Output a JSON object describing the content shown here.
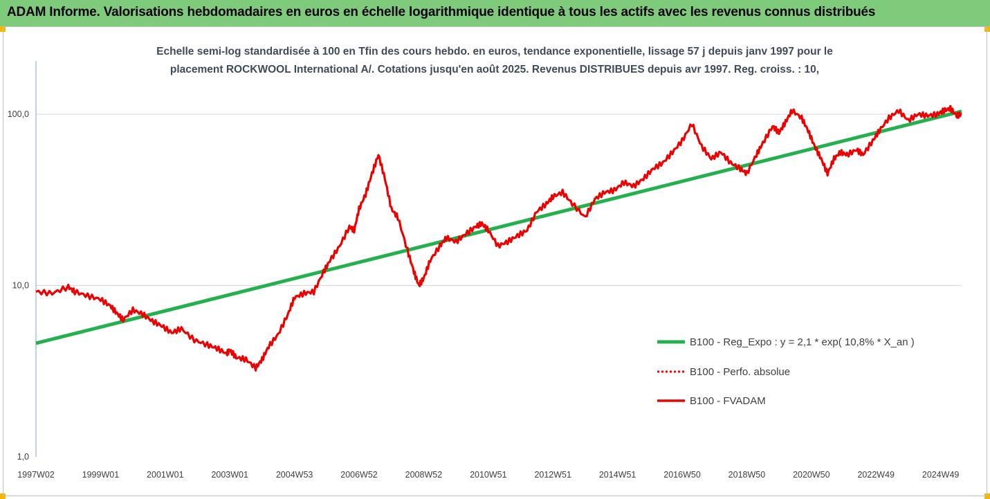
{
  "banner": {
    "title": "ADAM Informe. Valorisations hebdomadaires en euros en échelle logarithmique identique à tous les actifs avec les revenus connus distribués"
  },
  "colors": {
    "banner": "#7ecb7b",
    "regression": "#22b14c",
    "performance": "#ff0000",
    "fvadam": "#ee0000"
  },
  "chart_data": {
    "type": "line",
    "title_line1": "Echelle semi-log standardisée à 100 en Tfin des cours hebdo. en euros, tendance exponentielle, lissage 57 j depuis janv 1997 pour le",
    "title_line2": "placement ROCKWOOL International A/. Cotations jusqu'en août 2025.  Revenus DISTRIBUES depuis avr 1997. Reg. croiss. : 10,",
    "y_scale": "log",
    "ylim": [
      1,
      200
    ],
    "y_ticks": [
      {
        "value": 1,
        "label": "1,0"
      },
      {
        "value": 10,
        "label": "10,0"
      },
      {
        "value": 100,
        "label": "100,0"
      }
    ],
    "xlim": [
      1997.0,
      2025.65
    ],
    "x_ticks": [
      {
        "x": 1997.0,
        "label": "1997W02"
      },
      {
        "x": 1999.0,
        "label": "1999W01"
      },
      {
        "x": 2001.0,
        "label": "2001W01"
      },
      {
        "x": 2003.0,
        "label": "2003W01"
      },
      {
        "x": 2005.0,
        "label": "2004W53"
      },
      {
        "x": 2007.0,
        "label": "2006W52"
      },
      {
        "x": 2009.0,
        "label": "2008W52"
      },
      {
        "x": 2011.0,
        "label": "2010W51"
      },
      {
        "x": 2013.0,
        "label": "2012W51"
      },
      {
        "x": 2015.0,
        "label": "2014W51"
      },
      {
        "x": 2017.0,
        "label": "2016W50"
      },
      {
        "x": 2019.0,
        "label": "2018W50"
      },
      {
        "x": 2021.0,
        "label": "2020W50"
      },
      {
        "x": 2023.0,
        "label": "2022W49"
      },
      {
        "x": 2025.0,
        "label": "2024W49"
      }
    ],
    "legend_placement": "bottom-right",
    "series": [
      {
        "name": "B100 - Reg_Expo : y = 2,1 * exp( 10,8% *  X_an )",
        "style": "solid-thick",
        "x": [
          1997.0,
          2025.65
        ],
        "values": [
          4.6,
          104
        ]
      },
      {
        "name": "B100 - Perfo. absolue",
        "style": "dotted",
        "x": [],
        "values": []
      },
      {
        "name": "B100 - FVADAM",
        "style": "solid",
        "x": [
          1997.0,
          1997.5,
          1998.0,
          1998.2,
          1998.6,
          1999.0,
          1999.3,
          1999.5,
          1999.7,
          2000.0,
          2000.3,
          2000.6,
          2000.9,
          2001.2,
          2001.5,
          2001.9,
          2002.3,
          2002.6,
          2002.9,
          2003.0,
          2003.2,
          2003.5,
          2003.8,
          2004.0,
          2004.2,
          2004.5,
          2004.8,
          2005.0,
          2005.3,
          2005.6,
          2005.9,
          2006.1,
          2006.4,
          2006.7,
          2006.85,
          2007.0,
          2007.2,
          2007.4,
          2007.6,
          2007.8,
          2008.0,
          2008.2,
          2008.5,
          2008.7,
          2008.85,
          2009.0,
          2009.2,
          2009.5,
          2009.7,
          2010.0,
          2010.3,
          2010.6,
          2010.8,
          2011.0,
          2011.3,
          2011.6,
          2011.9,
          2012.2,
          2012.5,
          2012.8,
          2013.0,
          2013.3,
          2013.6,
          2014.0,
          2014.3,
          2014.6,
          2014.9,
          2015.2,
          2015.5,
          2015.8,
          2016.1,
          2016.4,
          2016.7,
          2017.0,
          2017.3,
          2017.6,
          2017.9,
          2018.2,
          2018.5,
          2018.8,
          2019.0,
          2019.3,
          2019.5,
          2019.8,
          2020.0,
          2020.2,
          2020.4,
          2020.7,
          2020.9,
          2021.1,
          2021.3,
          2021.5,
          2021.7,
          2021.9,
          2022.1,
          2022.4,
          2022.6,
          2022.9,
          2023.1,
          2023.4,
          2023.7,
          2024.0,
          2024.3,
          2024.6,
          2024.9,
          2025.1,
          2025.3,
          2025.5,
          2025.65
        ],
        "values": [
          9.2,
          9.0,
          9.8,
          9.2,
          8.7,
          8.3,
          7.6,
          6.9,
          6.3,
          7.2,
          6.8,
          6.2,
          5.8,
          5.3,
          5.6,
          4.8,
          4.5,
          4.3,
          4.0,
          4.2,
          3.8,
          3.7,
          3.3,
          3.7,
          4.4,
          5.2,
          6.8,
          8.5,
          9.0,
          9.2,
          12.0,
          14.0,
          17.0,
          22.0,
          21.0,
          28.0,
          34.0,
          45.0,
          58.0,
          42.0,
          28.0,
          25.0,
          16.0,
          12.0,
          10.0,
          11.0,
          14.0,
          17.0,
          19.0,
          18.0,
          20.0,
          22.0,
          23.0,
          21.0,
          17.0,
          18.0,
          19.5,
          21.0,
          27.0,
          30.0,
          33.0,
          35.0,
          30.0,
          25.0,
          32.0,
          35.0,
          36.0,
          40.0,
          38.0,
          42.0,
          48.0,
          52.0,
          60.0,
          70.0,
          88.0,
          65.0,
          55.0,
          60.0,
          52.0,
          48.0,
          45.0,
          58.0,
          68.0,
          85.0,
          78.0,
          90.0,
          105.0,
          95.0,
          80.0,
          65.0,
          55.0,
          45.0,
          55.0,
          60.0,
          58.0,
          62.0,
          58.0,
          70.0,
          80.0,
          95.0,
          105.0,
          92.0,
          100.0,
          98.0,
          100.0,
          105.0,
          108.0,
          98.0,
          100.0
        ]
      }
    ]
  }
}
